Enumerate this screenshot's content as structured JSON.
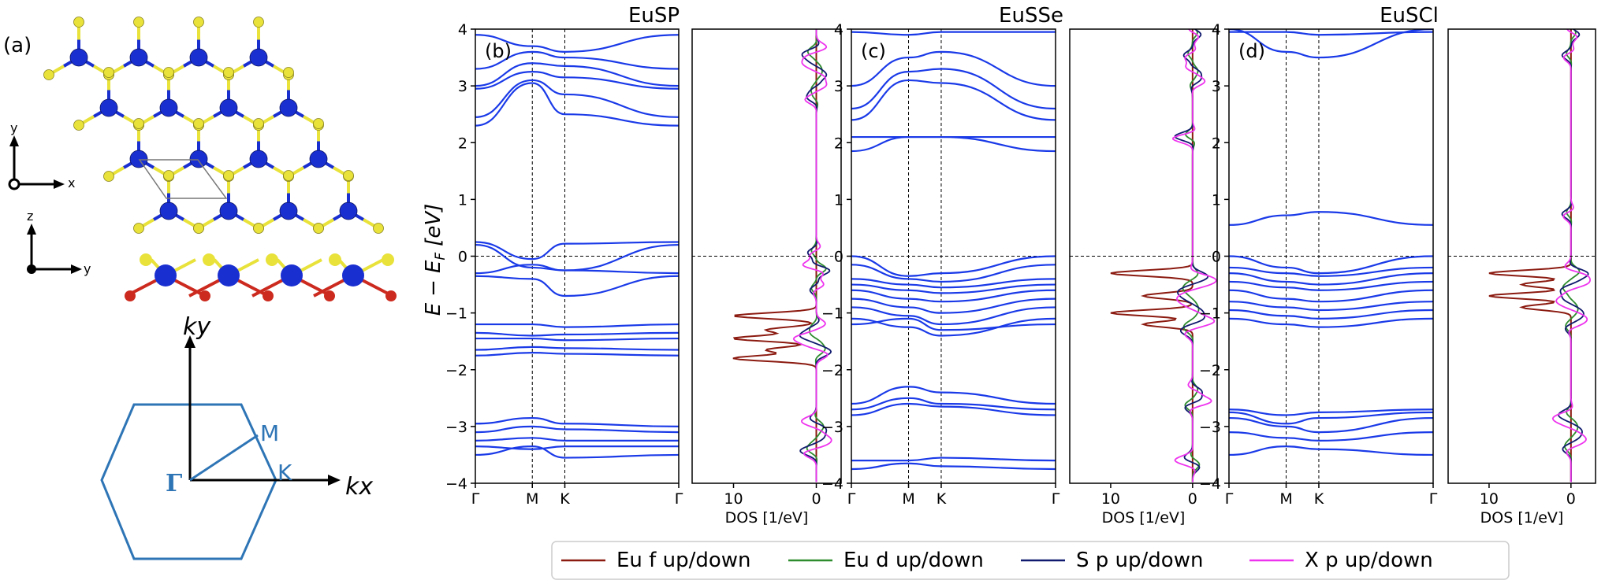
{
  "structure": {
    "panel_label": "(a)",
    "axes_top": {
      "h": "x",
      "v": "y"
    },
    "axes_side": {
      "h": "y",
      "v": "z"
    },
    "colors": {
      "metal": "#1a2fd0",
      "top_atom": "#e8e23a",
      "bottom_atom": "#cc2a1e",
      "bond_metal": "#1a2fd0",
      "cell": "#777777"
    }
  },
  "bz": {
    "ky_label": "ky",
    "kx_label": "kx",
    "gamma_label": "Γ",
    "m_label": "M",
    "k_label": "K",
    "color": "#2e75b6"
  },
  "ylabel_parts": {
    "e": "E",
    "minus": "−",
    "ef": "E",
    "sub": "F",
    "unit": "[eV]"
  },
  "dos_xlabel": "DOS [1/eV]",
  "dos_xticks": [
    "10",
    "0"
  ],
  "kpath_labels": [
    "Γ",
    "M",
    "K",
    "Γ"
  ],
  "ytick_labels": [
    "4",
    "3",
    "2",
    "1",
    "0",
    "−1",
    "−2",
    "−3",
    "−4"
  ],
  "legend": [
    {
      "label": "Eu f up/down",
      "color": "#8b1a10"
    },
    {
      "label": "Eu d up/down",
      "color": "#2e8b2e"
    },
    {
      "label": "S p up/down",
      "color": "#101a6e"
    },
    {
      "label": "X p up/down",
      "color": "#ee33ee"
    }
  ],
  "chart_data": [
    {
      "type": "line",
      "title": "EuSP",
      "panel": "(b)",
      "xlabel": "",
      "ylabel": "E − E_F [eV]",
      "ylim": [
        -4,
        4
      ],
      "x_ticks": [
        "Γ",
        "M",
        "K",
        "Γ"
      ],
      "bands_eV": [
        [
          0.25,
          -0.05,
          0.22,
          0.25
        ],
        [
          0.2,
          -0.2,
          -0.25,
          0.2
        ],
        [
          -0.3,
          -0.15,
          -0.25,
          -0.3
        ],
        [
          -0.35,
          -0.4,
          -0.7,
          -0.35
        ],
        [
          -1.2,
          -1.2,
          -1.25,
          -1.2
        ],
        [
          -1.35,
          -1.4,
          -1.38,
          -1.35
        ],
        [
          -1.45,
          -1.45,
          -1.48,
          -1.45
        ],
        [
          -1.65,
          -1.6,
          -1.62,
          -1.65
        ],
        [
          -1.75,
          -1.7,
          -1.72,
          -1.75
        ],
        [
          -2.95,
          -2.85,
          -2.95,
          -3.0
        ],
        [
          -3.1,
          -3.0,
          -3.05,
          -3.1
        ],
        [
          -3.25,
          -3.2,
          -3.25,
          -3.25
        ],
        [
          -3.35,
          -3.4,
          -3.35,
          -3.35
        ],
        [
          -3.5,
          -3.35,
          -3.55,
          -3.5
        ],
        [
          2.3,
          3.05,
          2.5,
          2.3
        ],
        [
          2.45,
          3.1,
          2.85,
          2.45
        ],
        [
          2.95,
          3.25,
          3.15,
          2.95
        ],
        [
          3.0,
          3.4,
          3.35,
          3.0
        ],
        [
          3.3,
          3.6,
          3.5,
          3.3
        ],
        [
          3.9,
          3.7,
          3.6,
          3.9
        ]
      ],
      "dos": {
        "xlim": [
          15,
          -3
        ],
        "eu_f_peaks": [
          -1.05,
          -1.3,
          -1.45,
          -1.65,
          -1.8
        ]
      }
    },
    {
      "type": "line",
      "title": "EuSSe",
      "panel": "(c)",
      "xlabel": "",
      "ylabel": "",
      "ylim": [
        -4,
        4
      ],
      "x_ticks": [
        "Γ",
        "M",
        "K",
        "Γ"
      ],
      "bands_eV": [
        [
          2.1,
          2.1,
          2.1,
          2.1
        ],
        [
          1.85,
          2.1,
          2.1,
          1.85
        ],
        [
          0.0,
          -0.35,
          -0.3,
          0.0
        ],
        [
          -0.15,
          -0.4,
          -0.45,
          -0.15
        ],
        [
          -0.4,
          -0.5,
          -0.55,
          -0.4
        ],
        [
          -0.5,
          -0.6,
          -0.65,
          -0.5
        ],
        [
          -0.6,
          -0.75,
          -0.8,
          -0.6
        ],
        [
          -0.75,
          -0.9,
          -1.0,
          -0.75
        ],
        [
          -0.9,
          -1.05,
          -1.2,
          -0.9
        ],
        [
          -1.1,
          -1.25,
          -1.4,
          -1.1
        ],
        [
          -1.2,
          -1.1,
          -1.3,
          -1.2
        ],
        [
          -2.6,
          -2.3,
          -2.4,
          -2.6
        ],
        [
          -2.7,
          -2.5,
          -2.6,
          -2.7
        ],
        [
          -2.8,
          -2.6,
          -2.65,
          -2.8
        ],
        [
          -3.6,
          -3.6,
          -3.55,
          -3.6
        ],
        [
          -3.75,
          -3.65,
          -3.7,
          -3.75
        ],
        [
          2.4,
          3.1,
          3.05,
          2.4
        ],
        [
          2.6,
          3.25,
          3.3,
          2.6
        ],
        [
          3.0,
          3.5,
          3.6,
          3.0
        ],
        [
          3.95,
          3.9,
          3.95,
          3.95
        ]
      ],
      "dos": {
        "xlim": [
          15,
          -3
        ],
        "eu_f_peaks": [
          -0.3,
          -0.7,
          -1.0,
          -1.2
        ]
      }
    },
    {
      "type": "line",
      "title": "EuSCl",
      "panel": "(d)",
      "xlabel": "",
      "ylabel": "",
      "ylim": [
        -4,
        4
      ],
      "x_ticks": [
        "Γ",
        "M",
        "K",
        "Γ"
      ],
      "bands_eV": [
        [
          0.55,
          0.72,
          0.78,
          0.55
        ],
        [
          0.0,
          -0.2,
          -0.3,
          0.0
        ],
        [
          -0.2,
          -0.3,
          -0.35,
          -0.2
        ],
        [
          -0.3,
          -0.45,
          -0.5,
          -0.3
        ],
        [
          -0.45,
          -0.55,
          -0.6,
          -0.45
        ],
        [
          -0.6,
          -0.75,
          -0.8,
          -0.6
        ],
        [
          -0.8,
          -0.9,
          -0.95,
          -0.8
        ],
        [
          -0.95,
          -1.05,
          -1.1,
          -0.95
        ],
        [
          -1.1,
          -1.2,
          -1.25,
          -1.1
        ],
        [
          -2.7,
          -2.8,
          -2.75,
          -2.7
        ],
        [
          -2.75,
          -2.95,
          -2.85,
          -2.75
        ],
        [
          -2.85,
          -3.0,
          -3.1,
          -2.85
        ],
        [
          -3.1,
          -3.2,
          -3.25,
          -3.1
        ],
        [
          -3.5,
          -3.35,
          -3.4,
          -3.5
        ],
        [
          3.95,
          3.95,
          3.9,
          3.95
        ],
        [
          4.0,
          3.6,
          3.5,
          4.0
        ]
      ],
      "dos": {
        "xlim": [
          15,
          -3
        ],
        "eu_f_peaks": [
          -0.3,
          -0.5,
          -0.7,
          -0.9
        ]
      }
    }
  ]
}
